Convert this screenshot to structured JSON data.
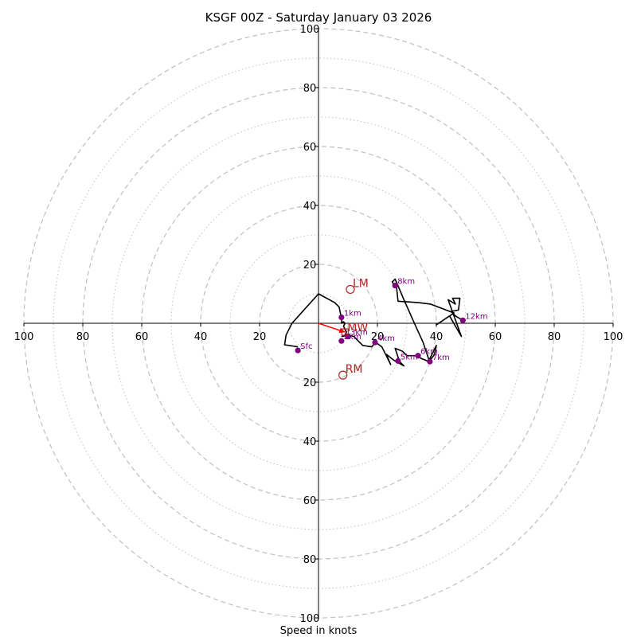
{
  "chart_data": {
    "type": "scatter",
    "subtype": "hodograph",
    "title": "KSGF 00Z - Saturday January 03 2026",
    "xlabel": "Speed in knots",
    "ylabel": "",
    "range": [
      -100,
      100
    ],
    "ring_major": [
      20,
      40,
      60,
      80,
      100
    ],
    "ring_minor": [
      10,
      30,
      50,
      70,
      90
    ],
    "x_ticks": [
      "100",
      "80",
      "60",
      "40",
      "20",
      "20",
      "40",
      "60",
      "80",
      "100"
    ],
    "x_tick_values": [
      -100,
      -80,
      -60,
      -40,
      -20,
      20,
      40,
      60,
      80,
      100
    ],
    "y_ticks": [
      "100",
      "80",
      "60",
      "40",
      "20",
      "20",
      "40",
      "60",
      "80",
      "100"
    ],
    "y_tick_values": [
      100,
      80,
      60,
      40,
      20,
      -20,
      -40,
      -60,
      -80,
      -100
    ],
    "colors": {
      "trace": "#000000",
      "points": "#800080",
      "motion": "#b22222",
      "shear": "#ff0000",
      "grid": "#c0c0c0"
    },
    "trace": [
      [
        -7.0,
        -8.0
      ],
      [
        -11.5,
        -7.3
      ],
      [
        -11.0,
        -4.0
      ],
      [
        -9.0,
        0.0
      ],
      [
        0.0,
        10.0
      ],
      [
        5.5,
        7.0
      ],
      [
        7.0,
        5.5
      ],
      [
        7.5,
        3.0
      ],
      [
        8.0,
        2.0
      ],
      [
        7.8,
        0.0
      ],
      [
        8.5,
        0.5
      ],
      [
        9.0,
        0.0
      ],
      [
        8.5,
        -1.0
      ],
      [
        9.5,
        -3.0
      ],
      [
        9.0,
        -4.0
      ],
      [
        8.0,
        -4.5
      ],
      [
        10.0,
        -4.0
      ],
      [
        12.0,
        -4.5
      ],
      [
        15.0,
        -7.5
      ],
      [
        18.0,
        -8.0
      ],
      [
        19.5,
        -6.5
      ],
      [
        21.5,
        -8.0
      ],
      [
        23.0,
        -11.0
      ],
      [
        24.5,
        -14.0
      ],
      [
        23.0,
        -10.5
      ],
      [
        25.5,
        -12.5
      ],
      [
        29.0,
        -14.5
      ],
      [
        27.5,
        -13.0
      ],
      [
        26.0,
        -8.5
      ],
      [
        28.5,
        -9.5
      ],
      [
        30.0,
        -11.0
      ],
      [
        33.0,
        -11.0
      ],
      [
        35.0,
        -12.0
      ],
      [
        37.5,
        -13.0
      ],
      [
        39.5,
        -10.5
      ],
      [
        40.0,
        -7.5
      ],
      [
        37.5,
        -12.5
      ],
      [
        35.5,
        -6.5
      ],
      [
        33.0,
        -1.0
      ],
      [
        31.0,
        3.5
      ],
      [
        29.0,
        8.0
      ],
      [
        27.5,
        11.5
      ],
      [
        26.0,
        15.0
      ],
      [
        25.0,
        14.0
      ],
      [
        26.5,
        12.0
      ],
      [
        27.0,
        7.5
      ],
      [
        34.0,
        7.0
      ],
      [
        38.0,
        6.5
      ],
      [
        42.0,
        5.0
      ],
      [
        46.0,
        3.5
      ],
      [
        40.0,
        -0.5
      ],
      [
        44.5,
        2.5
      ],
      [
        48.5,
        -4.5
      ],
      [
        44.0,
        8.0
      ],
      [
        46.5,
        6.5
      ],
      [
        45.5,
        8.5
      ],
      [
        48.0,
        8.5
      ],
      [
        47.5,
        4.5
      ],
      [
        45.0,
        4.0
      ],
      [
        46.5,
        2.5
      ],
      [
        49.0,
        1.0
      ]
    ],
    "points": [
      {
        "label": "Sfc",
        "u": -7.0,
        "v": -9.2
      },
      {
        "label": "1km",
        "u": 7.8,
        "v": 2.0
      },
      {
        "label": "2km",
        "u": 7.8,
        "v": -6.0
      },
      {
        "label": "3km",
        "u": 10.0,
        "v": -4.5
      },
      {
        "label": "4km",
        "u": 19.2,
        "v": -6.5
      },
      {
        "label": "5km",
        "u": 27.0,
        "v": -12.8
      },
      {
        "label": "6km",
        "u": 33.8,
        "v": -11.0
      },
      {
        "label": "7km",
        "u": 37.8,
        "v": -13.0
      },
      {
        "label": "8km",
        "u": 26.0,
        "v": 12.8
      },
      {
        "label": "12km",
        "u": 49.0,
        "v": 1.0
      }
    ],
    "storm_motion": [
      {
        "label": "LM",
        "u": 10.8,
        "v": 11.5
      },
      {
        "label": "RM",
        "u": 8.3,
        "v": -17.6
      },
      {
        "label": "MW",
        "u": 9.0,
        "v": -3.0
      }
    ],
    "shear_vector": {
      "from": [
        0,
        0
      ],
      "to": [
        9.0,
        -3.0
      ]
    }
  }
}
